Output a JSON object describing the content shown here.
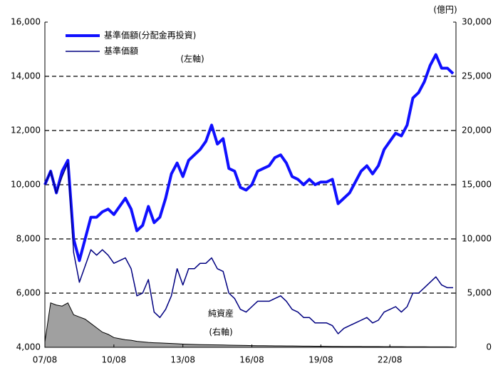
{
  "chart_data": {
    "type": "line",
    "unit_label": "(億円)",
    "x": [
      "07/08",
      "07/11",
      "08/02",
      "08/05",
      "08/08",
      "08/11",
      "09/02",
      "09/05",
      "09/08",
      "09/11",
      "10/02",
      "10/05",
      "10/08",
      "10/11",
      "11/02",
      "11/05",
      "11/08",
      "11/11",
      "12/02",
      "12/05",
      "12/08",
      "12/11",
      "13/02",
      "13/05",
      "13/08",
      "13/11",
      "14/02",
      "14/05",
      "14/08",
      "14/11",
      "15/02",
      "15/05",
      "15/08",
      "15/11",
      "16/02",
      "16/05",
      "16/08",
      "16/11",
      "17/02",
      "17/05",
      "17/08",
      "17/11",
      "18/02",
      "18/05",
      "18/08",
      "18/11",
      "19/02",
      "19/05",
      "19/08",
      "19/11",
      "20/02",
      "20/05",
      "20/08",
      "20/11",
      "21/02",
      "21/05",
      "21/08",
      "21/11",
      "22/02",
      "22/05",
      "22/08",
      "22/11",
      "23/02",
      "23/05",
      "23/08",
      "23/11",
      "24/02",
      "24/05",
      "24/08",
      "24/11",
      "25/02",
      "25/05"
    ],
    "xticks": [
      "07/08",
      "10/08",
      "13/08",
      "16/08",
      "19/08",
      "22/08"
    ],
    "ylim": [
      4000,
      16000
    ],
    "yticks": [
      {
        "value": 4000,
        "label": "4,000"
      },
      {
        "value": 6000,
        "label": "6,000"
      },
      {
        "value": 8000,
        "label": "8,000"
      },
      {
        "value": 10000,
        "label": "10,000"
      },
      {
        "value": 12000,
        "label": "12,000"
      },
      {
        "value": 14000,
        "label": "14,000"
      },
      {
        "value": 16000,
        "label": "16,000"
      }
    ],
    "y2lim": [
      0,
      30000
    ],
    "y2ticks": [
      0,
      {
        "value": 5000,
        "label": "5,000"
      },
      {
        "value": 10000,
        "label": "10,000"
      },
      {
        "value": 15000,
        "label": "15,000"
      },
      {
        "value": 20000,
        "label": "20,000"
      },
      {
        "value": 25000,
        "label": "25,000"
      },
      {
        "value": 30000,
        "label": "30,000"
      }
    ],
    "grid": true,
    "series": [
      {
        "name": "基準価額(分配金再投資)",
        "color": "#1010ff",
        "line_width": 4,
        "values": [
          10000,
          10500,
          9700,
          10500,
          10900,
          8000,
          7200,
          8000,
          8800,
          8800,
          9000,
          9100,
          8900,
          9200,
          9500,
          9100,
          8300,
          8500,
          9200,
          8600,
          8800,
          9500,
          10400,
          10800,
          10300,
          10900,
          11100,
          11300,
          11600,
          12200,
          11500,
          11700,
          10600,
          10500,
          9900,
          9800,
          10000,
          10500,
          10600,
          10700,
          11000,
          11100,
          10800,
          10300,
          10200,
          10000,
          10200,
          10000,
          10100,
          10100,
          10200,
          9300,
          9500,
          9700,
          10100,
          10500,
          10700,
          10400,
          10700,
          11300,
          11600,
          11900,
          11800,
          12200,
          13200,
          13400,
          13800,
          14400,
          14800,
          14300,
          14300,
          14100
        ]
      },
      {
        "name": "基準価額",
        "color": "#000080",
        "line_width": 1.5,
        "values": [
          10000,
          10500,
          9700,
          10300,
          10800,
          7500,
          6400,
          7000,
          7600,
          7400,
          7600,
          7400,
          7100,
          7200,
          7300,
          6900,
          5900,
          6000,
          6500,
          5300,
          5100,
          5400,
          5900,
          6900,
          6300,
          6900,
          6900,
          7100,
          7100,
          7300,
          6900,
          6800,
          6000,
          5800,
          5400,
          5300,
          5500,
          5700,
          5700,
          5700,
          5800,
          5900,
          5700,
          5400,
          5300,
          5100,
          5100,
          4900,
          4900,
          4900,
          4800,
          4500,
          4700,
          4800,
          4900,
          5000,
          5100,
          4900,
          5000,
          5300,
          5400,
          5500,
          5300,
          5500,
          6000,
          6000,
          6200,
          6400,
          6600,
          6300,
          6200,
          6200
        ]
      },
      {
        "name": "純資産",
        "color": "#a0a0a0",
        "style": "area",
        "axis": "y2",
        "values": [
          500,
          4100,
          3900,
          3800,
          4100,
          3000,
          2800,
          2600,
          2200,
          1800,
          1400,
          1200,
          900,
          800,
          700,
          650,
          550,
          500,
          450,
          420,
          400,
          380,
          350,
          330,
          300,
          280,
          260,
          250,
          240,
          230,
          220,
          210,
          200,
          190,
          180,
          170,
          160,
          150,
          145,
          140,
          135,
          130,
          125,
          120,
          115,
          110,
          105,
          100,
          95,
          90,
          85,
          80,
          78,
          75,
          72,
          70,
          68,
          65,
          62,
          60,
          58,
          56,
          54,
          52,
          50,
          48,
          46,
          44,
          42,
          40,
          38,
          36
        ]
      }
    ],
    "annotations": [
      "(左軸)",
      "純資産",
      "(右軸)"
    ]
  }
}
